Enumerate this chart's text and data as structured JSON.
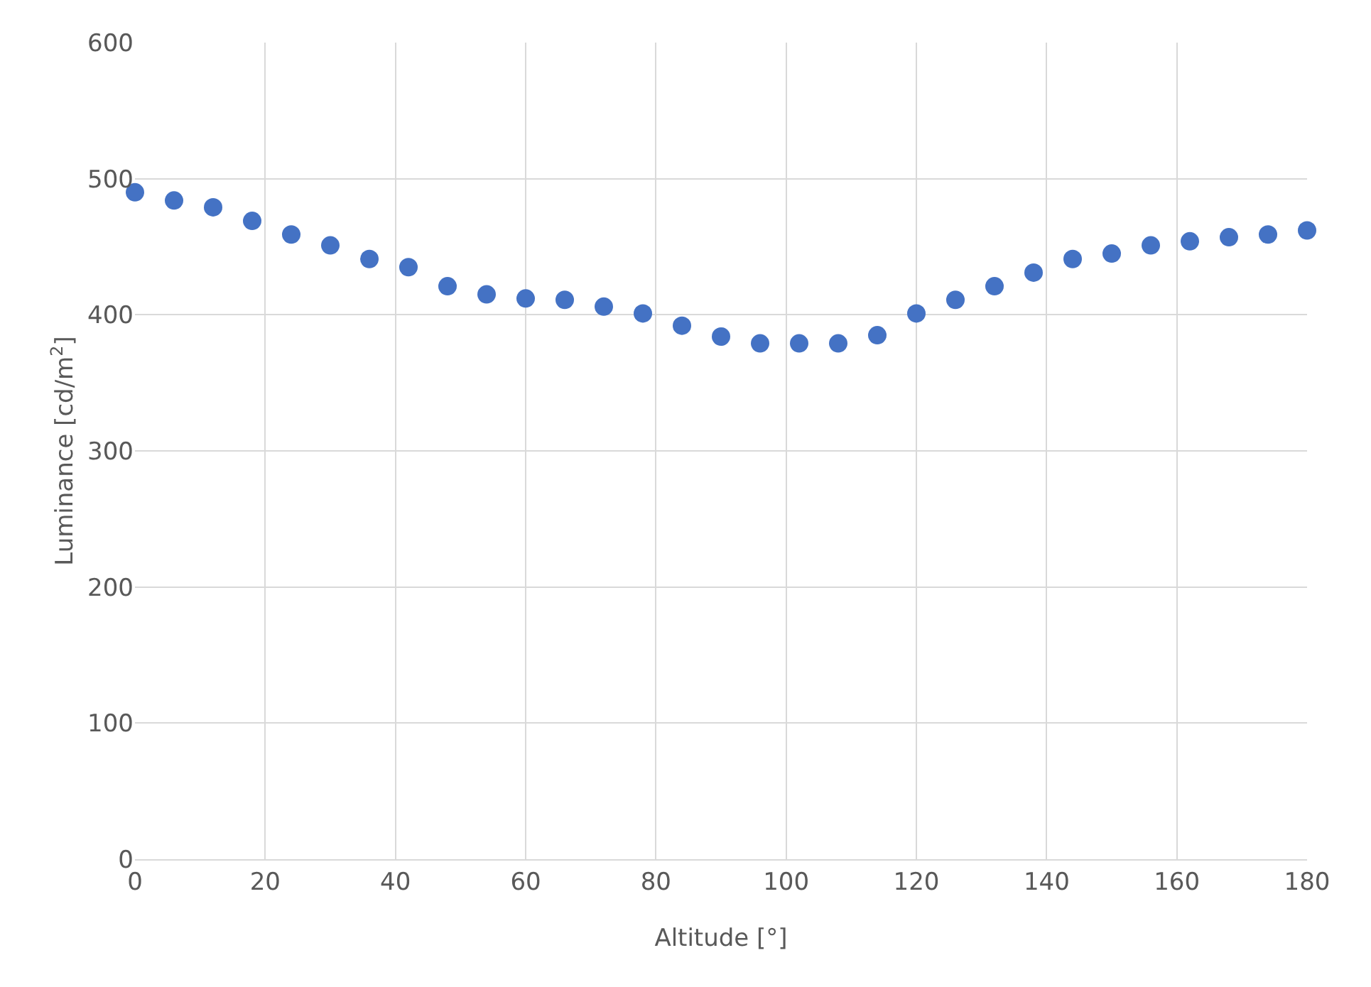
{
  "chart_data": {
    "type": "scatter",
    "xlabel": "Altitude [°]",
    "ylabel": "Luminance [cd/m$^{2}$]",
    "x": [
      0,
      6,
      12,
      18,
      24,
      30,
      36,
      42,
      48,
      54,
      60,
      66,
      72,
      78,
      84,
      90,
      96,
      102,
      108,
      114,
      120,
      126,
      132,
      138,
      144,
      150,
      156,
      162,
      168,
      174,
      180
    ],
    "series": [
      {
        "color": "#4472c4",
        "values": [
          490,
          484,
          479,
          469,
          459,
          451,
          441,
          435,
          421,
          415,
          412,
          411,
          406,
          401,
          392,
          384,
          379,
          379,
          379,
          385,
          401,
          411,
          421,
          431,
          441,
          445,
          451,
          454,
          457,
          459,
          462
        ]
      }
    ],
    "xlim": [
      0,
      180
    ],
    "xticks": [
      0,
      20,
      40,
      60,
      80,
      100,
      120,
      140,
      160,
      180
    ],
    "ylim": [
      0,
      600
    ],
    "yticks": [
      0,
      100,
      200,
      300,
      400,
      500,
      600
    ],
    "grid": true,
    "marker": "circle"
  }
}
